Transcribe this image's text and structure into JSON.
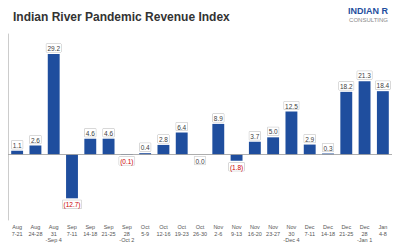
{
  "chart_data": {
    "type": "bar",
    "title": "Indian River Pandemic Revenue Index",
    "categories": [
      "Aug\n7-21",
      "Aug\n24-28",
      "Aug\n31\n-Sep 4",
      "Sep\n7-11",
      "Sep\n14-18",
      "Sep\n21-25",
      "Sep\n28\n-Oct 2",
      "Oct\n5-9",
      "Oct\n12-16",
      "Oct\n19-23",
      "Oct\n26-30",
      "Nov\n2-6",
      "Nov\n9-13",
      "Nov\n16-20",
      "Nov\n23-27",
      "Nov\n30\n-Dec 4",
      "Dec\n7-11",
      "Dec\n14-18",
      "Dec\n21-25",
      "Dec\n28\n-Jan 1",
      "Jan\n4-8"
    ],
    "values": [
      1.1,
      2.6,
      29.2,
      -12.7,
      4.6,
      4.6,
      -0.1,
      0.4,
      2.8,
      6.4,
      0.0,
      8.9,
      -1.8,
      3.7,
      5.0,
      12.5,
      2.9,
      0.3,
      18.2,
      21.3,
      18.4
    ],
    "value_labels": [
      "1.1",
      "2.6",
      "29.2",
      "(12.7)",
      "4.6",
      "4.6",
      "(0.1)",
      "0.4",
      "2.8",
      "6.4",
      "0.0",
      "8.9",
      "(1.8)",
      "3.7",
      "5.0",
      "12.5",
      "2.9",
      "0.3",
      "18.2",
      "21.3",
      "18.4"
    ],
    "color": "#1f4e9e",
    "ylim": [
      -19,
      35
    ],
    "data_labels": true,
    "tick_labels": "x",
    "grid": false,
    "annotations": [
      "INDIAN R",
      "CONSULTING"
    ]
  }
}
